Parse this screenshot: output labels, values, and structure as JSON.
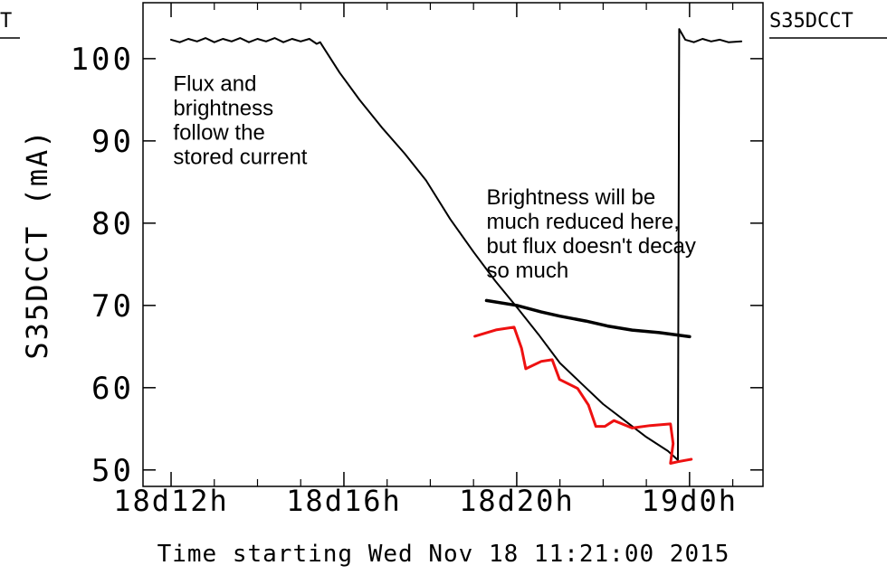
{
  "chart_data": {
    "type": "line",
    "x_label": "Time starting Wed Nov 18 11:21:00 2015",
    "y_label": "S35DCCT (mA)",
    "legend_label": "S35DCCT",
    "left_legend_label": "T",
    "xlim": [
      11.35,
      25.7
    ],
    "ylim": [
      48,
      106.8
    ],
    "xticks": [
      {
        "value": 12,
        "label": "18d12h"
      },
      {
        "value": 16,
        "label": "18d16h"
      },
      {
        "value": 20,
        "label": "18d20h"
      },
      {
        "value": 24,
        "label": "19d0h"
      }
    ],
    "xminorticks": [
      13,
      14,
      15,
      17,
      18,
      19,
      21,
      22,
      23,
      25
    ],
    "yticks": [
      50,
      60,
      70,
      80,
      90,
      100
    ],
    "annotations": [
      {
        "lines": [
          "Flux and",
          "brightness",
          "follow the",
          "stored current"
        ],
        "x": 12.05,
        "y": 96.1
      },
      {
        "lines": [
          "Brightness will be",
          "much reduced here,",
          "but flux doesn't decay",
          "so much"
        ],
        "x": 19.3,
        "y": 82.3
      }
    ],
    "series": [
      {
        "color": "#000000",
        "width": 2,
        "x": [
          12.0,
          12.2,
          12.4,
          12.6,
          12.8,
          13.0,
          13.2,
          13.4,
          13.6,
          13.8,
          14.0,
          14.2,
          14.4,
          14.6,
          14.8,
          15.0,
          15.2,
          15.37,
          15.45,
          15.9,
          16.36,
          16.9,
          17.4,
          17.9,
          18.46,
          19.0,
          19.5,
          20.0,
          20.5,
          21.0,
          21.5,
          22.0,
          22.5,
          23.0,
          23.5,
          23.73,
          23.76,
          23.9,
          24.1,
          24.3,
          24.5,
          24.7,
          24.9,
          25.2
        ],
        "values": [
          102.3,
          102.0,
          102.4,
          102.1,
          102.5,
          102.0,
          102.4,
          102.1,
          102.5,
          102.0,
          102.4,
          102.1,
          102.5,
          102.0,
          102.4,
          102.1,
          102.4,
          101.8,
          102.0,
          98.3,
          95.0,
          91.5,
          88.5,
          85.2,
          80.5,
          76.5,
          73.0,
          69.8,
          66.5,
          63.0,
          60.5,
          58.0,
          56.0,
          54.0,
          52.3,
          51.2,
          103.6,
          102.3,
          102.0,
          102.4,
          102.1,
          102.3,
          102.0,
          102.1
        ]
      },
      {
        "color": "#000000",
        "width": 3.5,
        "x": [
          19.3,
          20.0,
          20.57,
          21.0,
          21.6,
          22.1,
          22.67,
          23.3,
          24.0
        ],
        "values": [
          70.6,
          70.0,
          69.2,
          68.7,
          68.1,
          67.5,
          67.0,
          66.7,
          66.2
        ]
      },
      {
        "color": "#ee1111",
        "width": 3,
        "x": [
          19.03,
          19.52,
          19.94,
          20.11,
          20.21,
          20.57,
          20.82,
          20.99,
          21.41,
          21.66,
          21.83,
          22.04,
          22.25,
          22.67,
          23.09,
          23.56,
          23.62,
          23.56,
          23.73,
          24.04
        ],
        "values": [
          66.26,
          67.03,
          67.36,
          64.8,
          62.3,
          63.2,
          63.4,
          61.0,
          59.9,
          57.9,
          55.3,
          55.3,
          56.0,
          55.1,
          55.4,
          55.6,
          53.2,
          50.8,
          51.0,
          51.3
        ]
      }
    ]
  }
}
